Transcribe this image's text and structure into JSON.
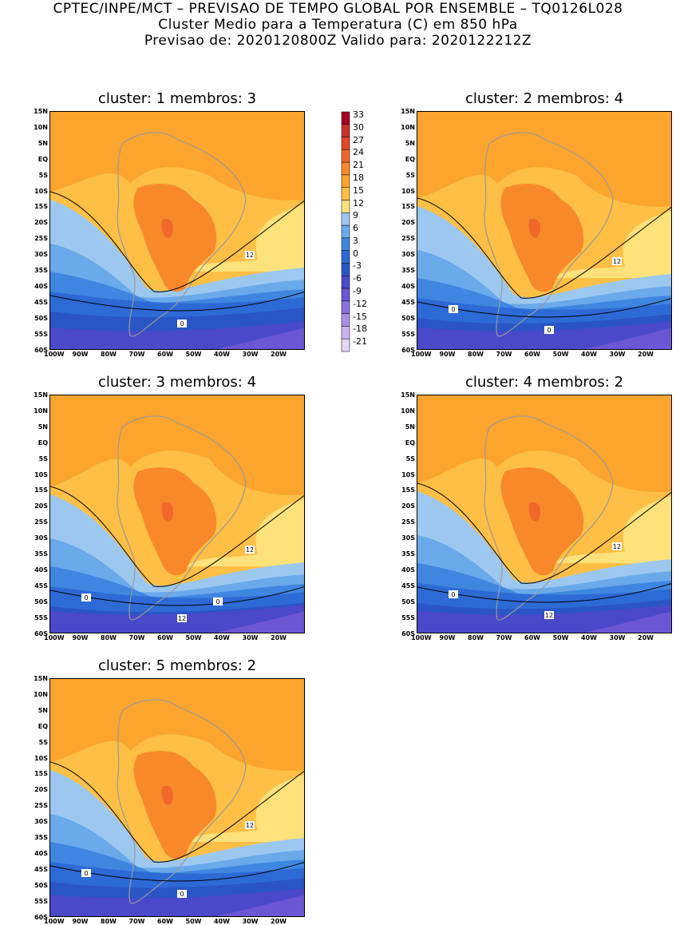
{
  "header": {
    "line1": "CPTEC/INPE/MCT – PREVISAO DE TEMPO GLOBAL POR ENSEMBLE – TQ0126L028",
    "line2": "Cluster Medio para a Temperatura (C) em 850 hPa",
    "line3": "Previsao de: 2020120800Z   Valido para: 2020122212Z"
  },
  "lat_labels": [
    "15N",
    "10N",
    "5N",
    "EQ",
    "5S",
    "10S",
    "15S",
    "20S",
    "25S",
    "30S",
    "35S",
    "40S",
    "45S",
    "50S",
    "55S",
    "60S"
  ],
  "lon_labels": [
    "100W",
    "90W",
    "80W",
    "70W",
    "60W",
    "50W",
    "40W",
    "30W",
    "20W"
  ],
  "colorbar": {
    "levels": [
      "33",
      "30",
      "27",
      "24",
      "21",
      "18",
      "15",
      "12",
      "9",
      "6",
      "3",
      "0",
      "-3",
      "-6",
      "-9",
      "-12",
      "-15",
      "-18",
      "-21"
    ],
    "colors": [
      "#a50026",
      "#c8312a",
      "#e3442a",
      "#f0682a",
      "#f8892a",
      "#fba42e",
      "#fdbf45",
      "#fde17a",
      "#9cc8f0",
      "#6aa9ea",
      "#3f86e0",
      "#2d6ad6",
      "#2a55c5",
      "#4a49c9",
      "#6b56d4",
      "#8a72dc",
      "#a890e4",
      "#c7b3ee",
      "#e2d6f5"
    ]
  },
  "clusters": [
    {
      "title": "cluster: 1   membros: 3",
      "contour_labels": [
        "12",
        "0"
      ]
    },
    {
      "title": "cluster: 2   membros: 4",
      "contour_labels": [
        "12",
        "0",
        "0"
      ]
    },
    {
      "title": "cluster: 3   membros: 4",
      "contour_labels": [
        "12",
        "12",
        "0",
        "0"
      ]
    },
    {
      "title": "cluster: 4   membros: 2",
      "contour_labels": [
        "12",
        "12",
        "0"
      ]
    },
    {
      "title": "cluster: 5   membros: 2",
      "contour_labels": [
        "12",
        "0",
        "0"
      ]
    }
  ]
}
